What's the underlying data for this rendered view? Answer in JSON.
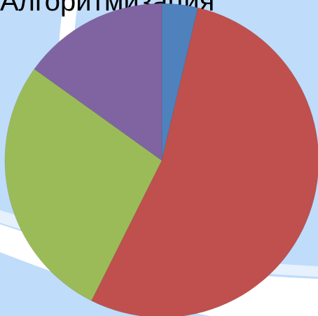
{
  "chart_data": {
    "type": "pie",
    "title": "Алгоритмизация",
    "slices": [
      {
        "value": 3.7,
        "color": "#4f81bd"
      },
      {
        "value": 53.7,
        "color": "#c0504d"
      },
      {
        "value": 27.5,
        "color": "#9bbb59"
      },
      {
        "value": 15.1,
        "color": "#8064a2"
      }
    ],
    "start_angle_deg": 0,
    "direction": "clockwise",
    "legend": "none"
  },
  "colors": {
    "background": "#bfdcfb",
    "decorative_band": "#ffffff"
  }
}
